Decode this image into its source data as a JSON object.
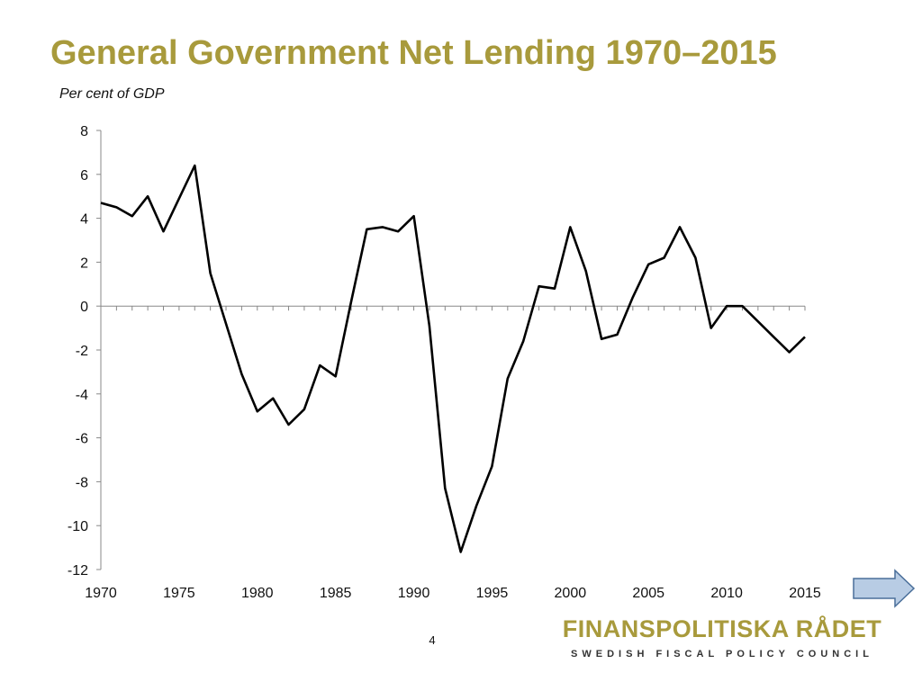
{
  "title": "General Government Net Lending 1970–2015",
  "subtitle": "Per cent of GDP",
  "page_number": "4",
  "logo": {
    "name": "FINANSPOLITISKA RÅDET",
    "tagline": "SWEDISH FISCAL POLICY COUNCIL",
    "color": "#a89a3c"
  },
  "nav": {
    "next_icon": "arrow-right-icon",
    "color": "#b8cce4"
  },
  "chart_data": {
    "type": "line",
    "title": "",
    "xlabel": "",
    "ylabel": "",
    "ylim": [
      -12,
      8
    ],
    "xlim": [
      1970,
      2015
    ],
    "yticks": [
      "8",
      "6",
      "4",
      "2",
      "0",
      "-2",
      "-4",
      "-6",
      "-8",
      "-10",
      "-12"
    ],
    "xticks": [
      "1970",
      "1975",
      "1980",
      "1985",
      "1990",
      "1995",
      "2000",
      "2005",
      "2010",
      "2015"
    ],
    "grid": false,
    "legend": "none",
    "series": [
      {
        "color": "#000000",
        "x": [
          1970,
          1971,
          1972,
          1973,
          1974,
          1975,
          1976,
          1977,
          1978,
          1979,
          1980,
          1981,
          1982,
          1983,
          1984,
          1985,
          1986,
          1987,
          1988,
          1989,
          1990,
          1991,
          1992,
          1993,
          1994,
          1995,
          1996,
          1997,
          1998,
          1999,
          2000,
          2001,
          2002,
          2003,
          2004,
          2005,
          2006,
          2007,
          2008,
          2009,
          2010,
          2011,
          2012,
          2013,
          2014,
          2015
        ],
        "values": [
          4.7,
          4.5,
          4.1,
          5.0,
          3.4,
          4.9,
          6.4,
          1.5,
          -0.8,
          -3.1,
          -4.8,
          -4.2,
          -5.4,
          -4.7,
          -2.7,
          -3.2,
          0.2,
          3.5,
          3.6,
          3.4,
          4.1,
          -0.9,
          -8.3,
          -11.2,
          -9.1,
          -7.3,
          -3.3,
          -1.6,
          0.9,
          0.8,
          3.6,
          1.6,
          -1.5,
          -1.3,
          0.4,
          1.9,
          2.2,
          3.6,
          2.2,
          -1.0,
          0.0,
          0.0,
          -0.7,
          -1.4,
          -2.1,
          -1.4
        ]
      }
    ]
  }
}
